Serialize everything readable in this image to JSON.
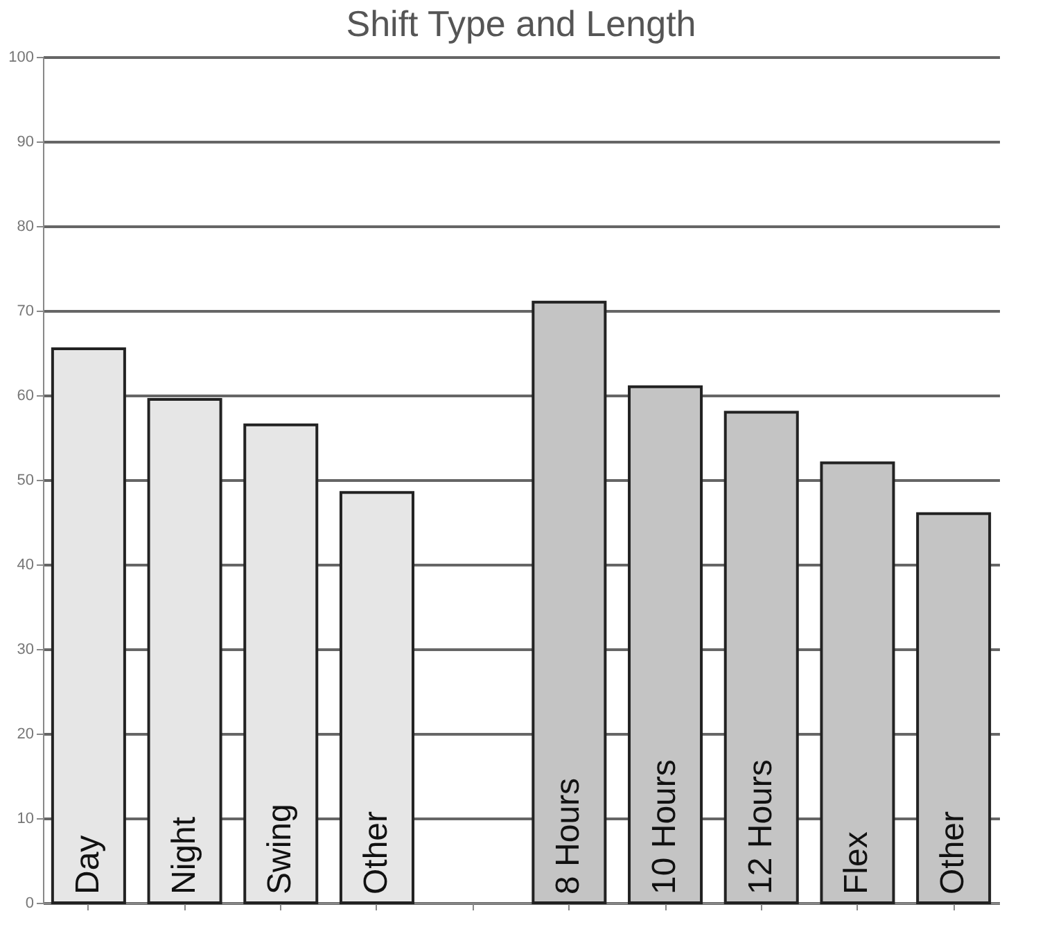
{
  "chart_data": {
    "type": "bar",
    "title": "Shift Type and Length",
    "categories": [
      "Day",
      "Night",
      "Swing",
      "Other",
      null,
      "8 Hours",
      "10 Hours",
      "12 Hours",
      "Flex",
      "Other"
    ],
    "series": [
      {
        "color": "#e6e6e6",
        "values": [
          65.5,
          59.5,
          56.5,
          48.5,
          null,
          null,
          null,
          null,
          null,
          null
        ]
      },
      {
        "color": "#c4c4c4",
        "values": [
          null,
          null,
          null,
          null,
          null,
          71,
          61,
          58,
          52,
          46
        ]
      }
    ],
    "ylim": [
      0,
      100
    ],
    "yticks": [
      0,
      10,
      20,
      30,
      40,
      50,
      60,
      70,
      80,
      90,
      100
    ],
    "grid": "y"
  }
}
